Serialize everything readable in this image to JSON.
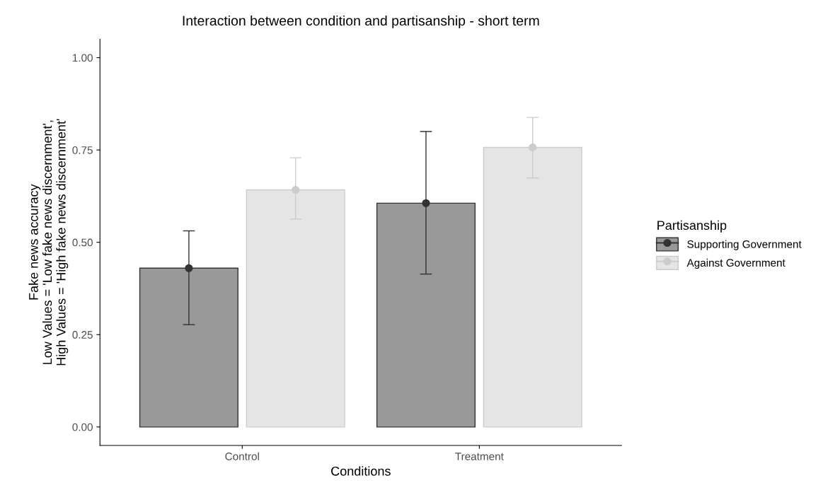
{
  "chart_data": {
    "type": "bar",
    "title": "Interaction between condition and partisanship - short term",
    "xlabel": "Conditions",
    "ylabel": "Fake news accuracy\nLow Values = 'Low fake news discernment',\nHigh Values = 'High fake news discernment'",
    "legend_title": "Partisanship",
    "categories": [
      "Control",
      "Treatment"
    ],
    "series": [
      {
        "name": "Supporting Government",
        "color": "#999999",
        "values": [
          0.43,
          0.606
        ]
      },
      {
        "name": "Against Government",
        "color": "#e5e5e5",
        "values": [
          0.642,
          0.757
        ]
      },
      {
        "type": "scatter",
        "color": "#333333",
        "x": [
          "Control",
          "Treatment"
        ],
        "values": [
          0.43,
          0.606
        ],
        "errors": [
          [
            0.277,
            0.531
          ],
          [
            0.414,
            0.8
          ]
        ]
      },
      {
        "type": "scatter",
        "color": "#cccccc",
        "x": [
          "Control",
          "Treatment"
        ],
        "values": [
          0.642,
          0.757
        ],
        "errors": [
          [
            0.563,
            0.729
          ],
          [
            0.674,
            0.838
          ]
        ]
      }
    ],
    "ylim": [
      -0.05,
      1.05
    ],
    "yticks": [
      {
        "value": 0,
        "label": "0.00"
      },
      {
        "value": 0.25,
        "label": "0.25"
      },
      {
        "value": 0.5,
        "label": "0.50"
      },
      {
        "value": 0.75,
        "label": "0.75"
      },
      {
        "value": 1,
        "label": "1.00"
      }
    ],
    "grid": false,
    "legend": "right",
    "marker": "circle"
  }
}
